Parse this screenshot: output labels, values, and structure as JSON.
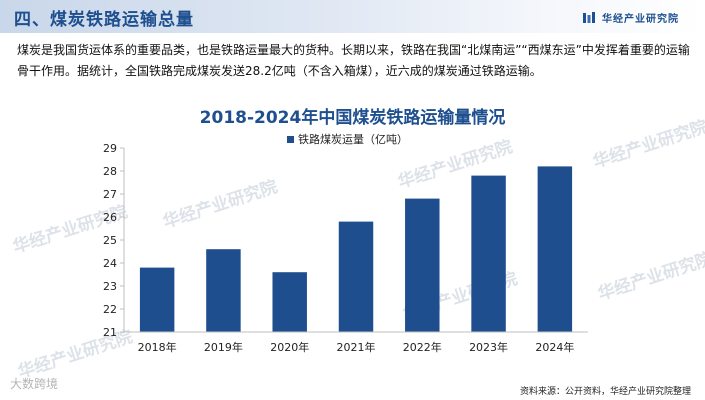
{
  "header": {
    "title": "四、煤炭铁路运输总量",
    "brand": "华经产业研究院"
  },
  "intro": "煤炭是我国货运体系的重要品类，也是铁路运量最大的货种。长期以来，铁路在我国“北煤南运”“西煤东运”中发挥着重要的运输骨干作用。据统计，全国铁路完成煤炭发送28.2亿吨（不含入箱煤），近六成的煤炭通过铁路运输。",
  "watermark": "华经产业研究院",
  "footer": {
    "left_mark": "大数跨境",
    "source": "资料来源：公开资料，华经产业研究院整理"
  },
  "colors": {
    "bar": "#1f4e8f",
    "title": "#1e4f8f",
    "axis": "#bfbfbf",
    "text": "#222222"
  },
  "chart_data": {
    "type": "bar",
    "title": "2018-2024年中国煤炭铁路运输量情况",
    "categories": [
      "2018年",
      "2019年",
      "2020年",
      "2021年",
      "2022年",
      "2023年",
      "2024年"
    ],
    "series": [
      {
        "name": "铁路煤炭运量（亿吨）",
        "values": [
          23.8,
          24.6,
          23.6,
          25.8,
          26.8,
          27.8,
          28.2
        ]
      }
    ],
    "ylim": [
      21,
      29
    ],
    "yticks": [
      21,
      22,
      23,
      24,
      25,
      26,
      27,
      28,
      29
    ],
    "grid": false,
    "legend": "top"
  }
}
